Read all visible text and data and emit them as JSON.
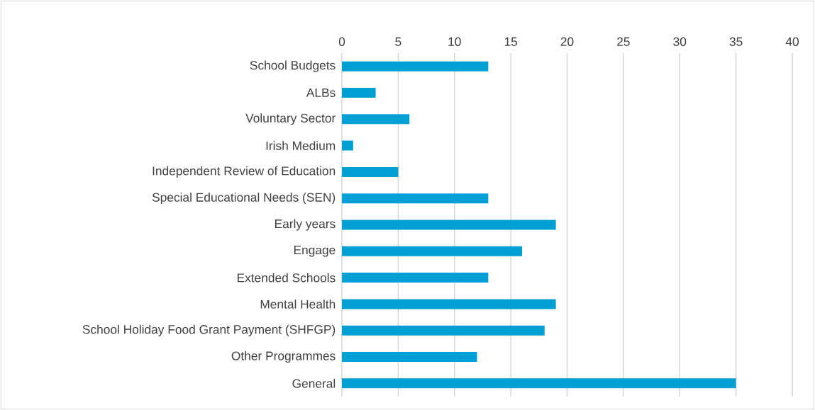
{
  "chart_data": {
    "type": "bar",
    "orientation": "horizontal",
    "categories": [
      "School Budgets",
      "ALBs",
      "Voluntary Sector",
      "Irish Medium",
      "Independent Review of Education",
      "Special Educational Needs (SEN)",
      "Early years",
      "Engage",
      "Extended Schools",
      "Mental Health",
      "School Holiday Food Grant Payment (SHFGP)",
      "Other Programmes",
      "General"
    ],
    "values": [
      13,
      3,
      6,
      1,
      5,
      13,
      19,
      16,
      13,
      19,
      18,
      12,
      35
    ],
    "color": "#009fd4",
    "xlim": [
      0,
      40
    ],
    "xticks": [
      0,
      5,
      10,
      15,
      20,
      25,
      30,
      35,
      40
    ],
    "grid": "x"
  }
}
